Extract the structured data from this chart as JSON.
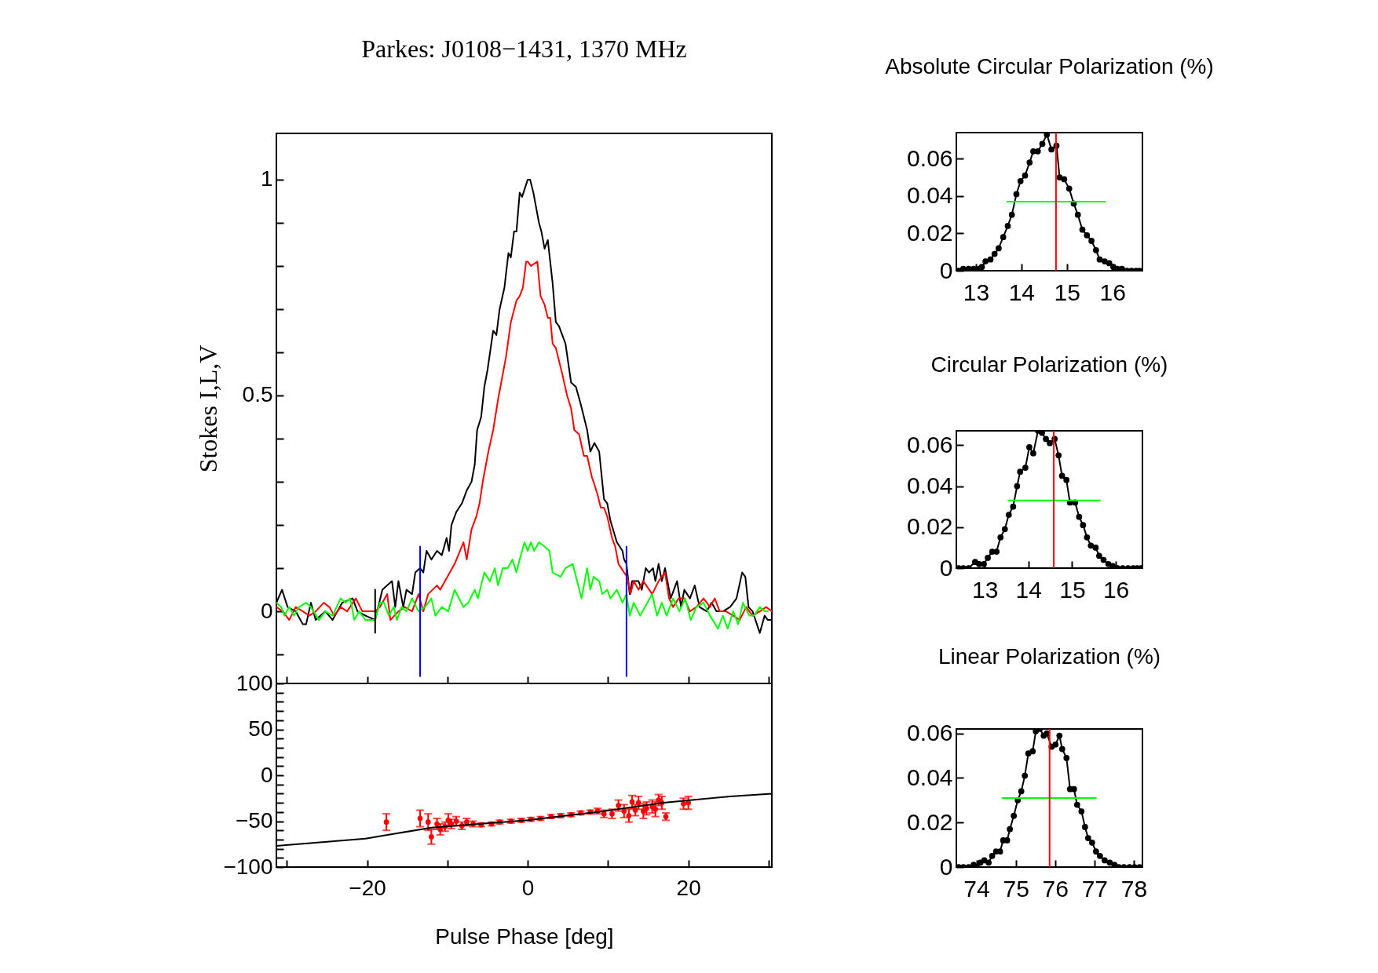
{
  "chart_data": [
    {
      "type": "line",
      "title": "Parkes: J0108−1431, 1370 MHz",
      "ylabel": "Stokes I,L,V",
      "xlim": [
        -31.3,
        30.4
      ],
      "ylim": [
        -0.167,
        1.107
      ],
      "xticks": [
        {
          "value": -30,
          "label": null
        },
        -20,
        {
          "value": -10,
          "label": null
        },
        0,
        {
          "value": 10,
          "label": null
        },
        20,
        {
          "value": 30,
          "label": null
        }
      ],
      "yticks": [
        {
          "value": -0.1,
          "label": null
        },
        0,
        {
          "value": 0.1,
          "label": null
        },
        {
          "value": 0.2,
          "label": null
        },
        {
          "value": 0.3,
          "label": null
        },
        {
          "value": 0.4,
          "label": null
        },
        0.5,
        {
          "value": 0.6,
          "label": null
        },
        {
          "value": 0.7,
          "label": null
        },
        {
          "value": 0.8,
          "label": null
        },
        {
          "value": 0.9,
          "label": null
        },
        1
      ],
      "tick_labels": "y",
      "series": [
        {
          "color": "#000000",
          "x": [
            -31.3,
            -30.6,
            -29.9,
            -28.9,
            -28.0,
            -27.6,
            -27.0,
            -26.4,
            -25.2,
            -24.3,
            -23.1,
            -21.8,
            -21.2,
            -20.2,
            -19.0,
            -18.1,
            -16.9,
            -16.5,
            -16.1,
            -15.5,
            -15.1,
            -14.4,
            -14.0,
            -13.4,
            -13.0,
            -12.6,
            -12.0,
            -11.3,
            -10.7,
            -10.1,
            -9.8,
            -9.5,
            -8.9,
            -8.2,
            -7.6,
            -7.0,
            -6.6,
            -6.3,
            -5.8,
            -5.4,
            -5.0,
            -4.3,
            -3.9,
            -3.5,
            -2.9,
            -2.4,
            -2.1,
            -1.7,
            -1.4,
            -1.0,
            -0.7,
            0.0,
            0.3,
            0.7,
            1.4,
            1.7,
            2.1,
            2.5,
            3.1,
            3.5,
            3.9,
            4.7,
            5.4,
            6.0,
            6.6,
            7.4,
            7.8,
            8.3,
            8.9,
            9.5,
            9.9,
            10.3,
            11.1,
            11.8,
            12.0,
            12.3,
            12.7,
            13.0,
            13.8,
            14.2,
            14.7,
            15.1,
            15.6,
            15.9,
            16.3,
            16.7,
            17.1,
            17.8,
            18.6,
            19.1,
            19.5,
            20.2,
            20.8,
            21.4,
            22.3,
            22.9,
            23.5,
            24.3,
            25.2,
            26.0,
            26.7,
            27.1,
            27.5,
            28.0,
            28.9,
            29.5,
            29.9,
            30.4
          ],
          "values": [
            0.02,
            0.05,
            0.01,
            0.0,
            -0.03,
            -0.03,
            0.02,
            -0.02,
            0.0,
            -0.02,
            0.02,
            0.03,
            0.0,
            -0.01,
            -0.02,
            0.05,
            0.07,
            0.01,
            0.07,
            0.01,
            0.05,
            0.04,
            0.09,
            0.1,
            0.09,
            0.14,
            0.12,
            0.14,
            0.13,
            0.17,
            0.14,
            0.2,
            0.23,
            0.25,
            0.28,
            0.3,
            0.34,
            0.42,
            0.45,
            0.52,
            0.56,
            0.65,
            0.64,
            0.7,
            0.75,
            0.83,
            0.82,
            0.88,
            0.88,
            0.97,
            0.96,
            1.0,
            1.0,
            0.97,
            0.9,
            0.88,
            0.84,
            0.86,
            0.76,
            0.67,
            0.66,
            0.62,
            0.53,
            0.52,
            0.48,
            0.42,
            0.37,
            0.39,
            0.37,
            0.26,
            0.25,
            0.21,
            0.16,
            0.14,
            0.12,
            0.11,
            0.04,
            0.07,
            0.07,
            0.05,
            0.1,
            0.09,
            0.1,
            0.07,
            0.11,
            0.07,
            0.1,
            0.03,
            0.07,
            0.01,
            0.05,
            0.03,
            0.06,
            0.01,
            0.0,
            0.02,
            0.0,
            0.0,
            0.01,
            0.03,
            0.09,
            0.08,
            0.01,
            0.0,
            -0.05,
            -0.01,
            -0.02,
            -0.02
          ]
        },
        {
          "color": "#ff0000",
          "x": [
            -31.3,
            -30.5,
            -29.7,
            -28.9,
            -28.0,
            -27.2,
            -26.4,
            -25.4,
            -24.7,
            -24.1,
            -23.3,
            -22.5,
            -21.4,
            -20.6,
            -20.0,
            -19.0,
            -18.4,
            -17.5,
            -17.1,
            -16.1,
            -15.3,
            -14.4,
            -13.6,
            -13.0,
            -12.4,
            -11.3,
            -10.9,
            -10.3,
            -9.7,
            -9.1,
            -8.0,
            -7.6,
            -7.0,
            -6.4,
            -6.0,
            -5.6,
            -4.9,
            -4.3,
            -3.7,
            -3.3,
            -2.7,
            -2.1,
            -1.4,
            -1.0,
            -0.6,
            -0.2,
            0,
            0.4,
            1.2,
            1.6,
            2.1,
            2.5,
            2.8,
            3.1,
            3.5,
            3.9,
            4.3,
            4.9,
            5.4,
            5.8,
            6.4,
            7.0,
            7.4,
            8.0,
            8.2,
            8.7,
            9.1,
            9.5,
            9.9,
            10.5,
            10.9,
            11.3,
            12.0,
            12.4,
            12.8,
            13.2,
            13.8,
            14.4,
            15.5,
            16.3,
            17.1,
            17.6,
            18.1,
            18.8,
            19.5,
            20.2,
            21.0,
            21.9,
            22.7,
            23.3,
            23.9,
            24.7,
            25.6,
            26.4,
            27.2,
            28.0,
            28.9,
            29.7,
            30.4
          ],
          "values": [
            0.01,
            0.0,
            -0.02,
            0.01,
            0.0,
            -0.01,
            0.0,
            0.02,
            0.01,
            -0.01,
            0.01,
            0.0,
            0.03,
            0.0,
            0.0,
            0.0,
            0.01,
            0.04,
            -0.02,
            0.0,
            0.01,
            0.0,
            0.04,
            0.0,
            0.04,
            0.06,
            0.05,
            0.07,
            0.09,
            0.11,
            0.16,
            0.12,
            0.19,
            0.22,
            0.25,
            0.3,
            0.37,
            0.42,
            0.49,
            0.53,
            0.59,
            0.67,
            0.72,
            0.73,
            0.75,
            0.81,
            0.81,
            0.8,
            0.81,
            0.73,
            0.71,
            0.68,
            0.68,
            0.62,
            0.61,
            0.58,
            0.55,
            0.5,
            0.47,
            0.42,
            0.41,
            0.36,
            0.36,
            0.31,
            0.3,
            0.27,
            0.24,
            0.24,
            0.22,
            0.17,
            0.15,
            0.11,
            0.09,
            0.08,
            0.04,
            0.07,
            0.05,
            0.07,
            0.04,
            0.07,
            0.09,
            0.03,
            0.01,
            0.03,
            0.03,
            0.0,
            0.01,
            0.03,
            0.01,
            0.03,
            0.0,
            0.0,
            -0.01,
            -0.02,
            0.01,
            -0.01,
            0.0,
            0.01,
            0.0
          ]
        },
        {
          "color": "#00ff00",
          "x": [
            -31.3,
            -30.7,
            -30.3,
            -29.7,
            -29.1,
            -28.5,
            -27.6,
            -27.0,
            -26.0,
            -25.2,
            -24.3,
            -23.3,
            -22.7,
            -22.1,
            -21.6,
            -21.0,
            -20.2,
            -19.8,
            -19.0,
            -18.4,
            -17.9,
            -17.3,
            -16.7,
            -16.3,
            -15.7,
            -15.1,
            -14.4,
            -13.6,
            -12.8,
            -12.0,
            -11.5,
            -10.7,
            -9.9,
            -9.1,
            -8.0,
            -7.4,
            -6.6,
            -6.2,
            -5.4,
            -4.7,
            -4.1,
            -3.7,
            -3.1,
            -2.5,
            -1.9,
            -1.4,
            -1.0,
            -0.4,
            0,
            0.4,
            0.8,
            1.4,
            2.1,
            2.7,
            3.1,
            4.1,
            4.7,
            5.6,
            6.7,
            7.4,
            7.8,
            8.2,
            8.9,
            9.3,
            9.9,
            10.3,
            11.1,
            11.8,
            12.3,
            12.7,
            13.2,
            14.0,
            14.6,
            15.5,
            16.1,
            16.7,
            17.3,
            18.1,
            18.9,
            19.6,
            20.3,
            21.0,
            21.9,
            22.7,
            23.7,
            24.3,
            24.9,
            25.6,
            26.2,
            26.8,
            27.6,
            28.2,
            28.9,
            29.5,
            29.9
          ],
          "values": [
            0.02,
            0.01,
            -0.01,
            0.01,
            -0.01,
            0.01,
            0.02,
            0.01,
            -0.02,
            0.0,
            -0.01,
            0.03,
            0.02,
            0.03,
            -0.02,
            0.0,
            -0.02,
            -0.02,
            -0.02,
            0.02,
            0.02,
            -0.01,
            0.01,
            -0.02,
            0.01,
            0.0,
            0.03,
            0.0,
            0.01,
            0.03,
            -0.01,
            0.01,
            0.0,
            0.05,
            0.01,
            0.02,
            0.05,
            0.03,
            0.09,
            0.07,
            0.1,
            0.06,
            0.1,
            0.1,
            0.12,
            0.09,
            0.12,
            0.16,
            0.14,
            0.16,
            0.14,
            0.16,
            0.15,
            0.14,
            0.09,
            0.08,
            0.1,
            0.11,
            0.03,
            0.1,
            0.05,
            0.08,
            0.07,
            0.04,
            0.05,
            0.03,
            0.05,
            0.02,
            0.04,
            -0.01,
            0.02,
            -0.01,
            0.01,
            0.04,
            -0.01,
            0.02,
            -0.01,
            0.03,
            0.0,
            0.03,
            -0.02,
            0.01,
            0.02,
            -0.01,
            -0.04,
            -0.01,
            -0.04,
            0.0,
            -0.03,
            0.02,
            -0.01,
            -0.01,
            0.01,
            0.0,
            0.0
          ]
        },
        {
          "color": "#0000ff",
          "x": [
            -13.4,
            -13.4
          ],
          "values": [
            -0.15,
            0.15
          ]
        },
        {
          "color": "#0000ff",
          "x": [
            12.3,
            12.3
          ],
          "values": [
            -0.15,
            0.15
          ]
        },
        {
          "color": "#000000",
          "x": [
            -19.0,
            -19.0
          ],
          "values": [
            -0.05,
            0.05
          ]
        }
      ]
    },
    {
      "type": "scatter",
      "xlabel": "Pulse Phase [deg]",
      "xlim": [
        -31.3,
        30.4
      ],
      "ylim": [
        -100,
        100
      ],
      "xticks": [
        {
          "value": -30,
          "label": null
        },
        -20,
        {
          "value": -10,
          "label": null
        },
        0,
        {
          "value": 10,
          "label": null
        },
        20,
        {
          "value": 30,
          "label": null
        }
      ],
      "yticks": [
        -100,
        {
          "value": -90,
          "label": null
        },
        {
          "value": -80,
          "label": null
        },
        {
          "value": -70,
          "label": null
        },
        {
          "value": -60,
          "label": null
        },
        -50,
        {
          "value": -40,
          "label": null
        },
        {
          "value": -30,
          "label": null
        },
        {
          "value": -20,
          "label": null
        },
        {
          "value": -10,
          "label": null
        },
        0,
        {
          "value": 10,
          "label": null
        },
        {
          "value": 20,
          "label": null
        },
        {
          "value": 30,
          "label": null
        },
        {
          "value": 40,
          "label": null
        },
        50,
        {
          "value": 60,
          "label": null
        },
        {
          "value": 70,
          "label": null
        },
        {
          "value": 80,
          "label": null
        },
        {
          "value": 90,
          "label": null
        },
        100
      ],
      "series": [
        {
          "color": "#ff0000",
          "marker": "circle",
          "x": [
            -17.6,
            -13.4,
            -12.4,
            -12.0,
            -11.3,
            -10.9,
            -10.3,
            -9.9,
            -9.5,
            -8.9,
            -8.2,
            -7.6,
            -6.8,
            -5.8,
            -4.5,
            -3.5,
            -2.1,
            -0.8,
            0.4,
            1.6,
            2.9,
            4.1,
            5.4,
            6.6,
            7.8,
            8.7,
            9.5,
            10.5,
            11.3,
            12.0,
            12.6,
            13.0,
            13.4,
            13.8,
            14.4,
            14.8,
            15.5,
            15.9,
            16.3,
            16.7,
            17.2,
            19.4,
            20.0
          ],
          "values": [
            -51,
            -47,
            -51,
            -67,
            -53,
            -59,
            -56,
            -49,
            -53,
            -50,
            -55,
            -51,
            -53,
            -54,
            -53,
            -51,
            -50,
            -49,
            -48,
            -47,
            -45,
            -44,
            -43,
            -41,
            -40,
            -39,
            -42,
            -42,
            -33,
            -39,
            -44,
            -29,
            -38,
            -30,
            -39,
            -36,
            -34,
            -37,
            -27,
            -30,
            -45,
            -31,
            -30
          ],
          "errors": [
            9,
            9,
            9,
            8,
            6,
            6,
            5,
            7,
            5,
            5,
            4,
            4,
            3,
            2,
            2,
            2,
            2,
            2,
            2,
            2,
            2,
            2,
            2,
            2,
            2,
            3,
            4,
            5,
            6,
            7,
            7,
            7,
            6,
            7,
            8,
            7,
            7,
            8,
            6,
            7,
            4,
            6,
            7
          ]
        },
        {
          "type": "line",
          "color": "#000000",
          "x": [
            -31.3,
            -20.2,
            -12.0,
            0,
            8.7,
            16.9,
            25.2,
            30.4
          ],
          "values": [
            -77,
            -69,
            -57,
            -49,
            -40,
            -30,
            -23,
            -20
          ]
        }
      ]
    },
    {
      "type": "line",
      "title": "Absolute Circular Polarization (%)",
      "xlim": [
        12.57,
        16.66
      ],
      "ylim": [
        0,
        0.074
      ],
      "xticks": [
        13,
        14,
        15,
        16
      ],
      "yticks": [
        0,
        0.02,
        0.04,
        0.06
      ],
      "ref_lines": [
        {
          "axis": "x",
          "value": 14.76,
          "color": "#ff0000"
        }
      ],
      "series": [
        {
          "color": "#000000",
          "marker": "circle",
          "x": [
            12.62,
            12.72,
            12.84,
            12.95,
            13.07,
            13.13,
            13.21,
            13.32,
            13.41,
            13.5,
            13.6,
            13.7,
            13.79,
            13.89,
            13.98,
            14.08,
            14.18,
            14.26,
            14.36,
            14.46,
            14.56,
            14.66,
            14.77,
            14.84,
            14.94,
            15.05,
            15.15,
            15.24,
            15.34,
            15.44,
            15.54,
            15.64,
            15.72,
            15.83,
            15.93,
            16.02,
            16.11,
            16.21,
            16.32,
            16.42,
            16.52,
            16.6
          ],
          "values": [
            0,
            0.001,
            0.001,
            0.001,
            0.001,
            0.002,
            0.005,
            0.006,
            0.009,
            0.012,
            0.018,
            0.024,
            0.03,
            0.041,
            0.048,
            0.051,
            0.058,
            0.064,
            0.064,
            0.068,
            0.073,
            0.065,
            0.067,
            0.05,
            0.049,
            0.044,
            0.036,
            0.03,
            0.022,
            0.019,
            0.016,
            0.011,
            0.006,
            0.005,
            0.004,
            0.002,
            0.001,
            0.001,
            0,
            0,
            0,
            0
          ]
        },
        {
          "color": "#00ff00",
          "x": [
            13.69,
            15.84
          ],
          "values": [
            0.037,
            0.037
          ]
        }
      ]
    },
    {
      "type": "line",
      "title": "Circular Polarization (%)",
      "xlim": [
        12.35,
        16.61
      ],
      "ylim": [
        0,
        0.067
      ],
      "xticks": [
        13,
        14,
        15,
        16
      ],
      "yticks": [
        0,
        0.02,
        0.04,
        0.06
      ],
      "ref_lines": [
        {
          "axis": "x",
          "value": 14.58,
          "color": "#ff0000"
        }
      ],
      "series": [
        {
          "color": "#000000",
          "marker": "circle",
          "x": [
            12.4,
            12.51,
            12.63,
            12.78,
            12.87,
            12.98,
            13.07,
            13.17,
            13.27,
            13.36,
            13.46,
            13.55,
            13.65,
            13.74,
            13.81,
            13.93,
            14.02,
            14.11,
            14.22,
            14.31,
            14.4,
            14.49,
            14.6,
            14.69,
            14.77,
            14.87,
            14.95,
            15.07,
            15.16,
            15.25,
            15.34,
            15.43,
            15.54,
            15.62,
            15.72,
            15.83,
            15.93,
            16.04,
            16.16,
            16.28,
            16.4,
            16.49,
            16.58
          ],
          "values": [
            0,
            0,
            0,
            0.003,
            0.002,
            0.002,
            0.005,
            0.008,
            0.008,
            0.015,
            0.019,
            0.026,
            0.03,
            0.04,
            0.047,
            0.049,
            0.059,
            0.056,
            0.067,
            0.066,
            0.063,
            0.061,
            0.063,
            0.055,
            0.045,
            0.043,
            0.032,
            0.032,
            0.025,
            0.021,
            0.015,
            0.011,
            0.01,
            0.006,
            0.004,
            0.002,
            0.001,
            0,
            0,
            0,
            0,
            0,
            0
          ]
        },
        {
          "color": "#00ff00",
          "x": [
            13.54,
            15.64
          ],
          "values": [
            0.033,
            0.033
          ]
        }
      ]
    },
    {
      "type": "line",
      "title": "Linear Polarization (%)",
      "xlim": [
        73.49,
        78.22
      ],
      "ylim": [
        0,
        0.062
      ],
      "xticks": [
        74,
        75,
        76,
        77,
        78
      ],
      "yticks": [
        0,
        0.02,
        0.04,
        0.06
      ],
      "ref_lines": [
        {
          "axis": "x",
          "value": 75.86,
          "color": "#ff0000"
        }
      ],
      "series": [
        {
          "color": "#000000",
          "marker": "circle",
          "x": [
            73.55,
            73.67,
            73.8,
            73.93,
            74.01,
            74.1,
            74.2,
            74.31,
            74.4,
            74.5,
            74.6,
            74.68,
            74.78,
            74.85,
            74.95,
            75.05,
            75.14,
            75.23,
            75.32,
            75.43,
            75.51,
            75.61,
            75.71,
            75.79,
            75.91,
            76.01,
            76.11,
            76.18,
            76.29,
            76.38,
            76.48,
            76.56,
            76.67,
            76.76,
            76.84,
            76.94,
            77.04,
            77.14,
            77.26,
            77.39,
            77.51,
            77.62,
            77.75,
            77.89,
            78.02,
            78.15
          ],
          "values": [
            0,
            0,
            0,
            0.001,
            0,
            0.002,
            0.003,
            0.002,
            0.005,
            0.007,
            0.007,
            0.012,
            0.012,
            0.017,
            0.023,
            0.03,
            0.034,
            0.041,
            0.051,
            0.052,
            0.061,
            0.062,
            0.059,
            0.06,
            0.054,
            0.055,
            0.059,
            0.053,
            0.049,
            0.035,
            0.035,
            0.028,
            0.025,
            0.018,
            0.013,
            0.011,
            0.007,
            0.005,
            0.003,
            0.002,
            0.001,
            0,
            0,
            0,
            0,
            0
          ]
        },
        {
          "color": "#00ff00",
          "x": [
            74.66,
            77.04
          ],
          "values": [
            0.031,
            0.031
          ]
        }
      ]
    }
  ]
}
